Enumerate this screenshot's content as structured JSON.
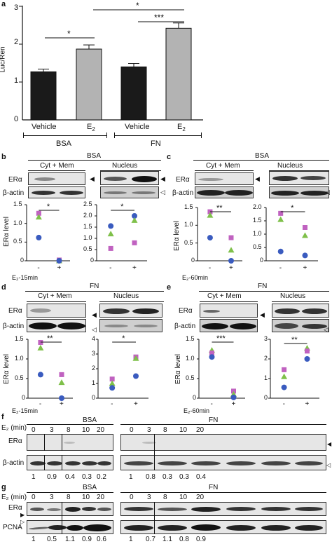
{
  "panel_a": {
    "label": "a",
    "ylabel": "Luc/Ren",
    "yticks": [
      "3",
      "2",
      "1",
      "0"
    ],
    "sig": [
      "*",
      "*",
      "***"
    ],
    "xlabels": [
      "Vehicle",
      "E",
      "Vehicle",
      "E"
    ],
    "e2_sub": "2",
    "groups": [
      "BSA",
      "FN"
    ]
  },
  "chart_data": {
    "type": "bar",
    "ylabel": "Luc/Ren",
    "ylim": [
      0,
      3
    ],
    "categories": [
      "Vehicle (BSA)",
      "E2 (BSA)",
      "Vehicle (FN)",
      "E2 (FN)"
    ],
    "values": [
      1.27,
      1.87,
      1.4,
      2.42
    ],
    "errors": [
      0.07,
      0.11,
      0.09,
      0.14
    ],
    "colors": [
      "#1a1a1a",
      "#b3b3b3",
      "#1a1a1a",
      "#b3b3b3"
    ]
  },
  "panel_b": {
    "label": "b",
    "title": "BSA",
    "left_header": "Cyt + Mem",
    "right_header": "Nucleus",
    "era": "ERα",
    "actin": "β-actin",
    "ylabel": "ERα level",
    "treat": "E₂-15min",
    "minus": "-",
    "plus": "+",
    "sig_left": "*",
    "sig_right": "*",
    "left_yticks": [
      "1.5",
      "1.0",
      "0.5",
      "0"
    ],
    "right_yticks": [
      "2.5",
      "2.0",
      "1.5",
      "1.0",
      "0.5",
      "0"
    ]
  },
  "panel_c": {
    "label": "c",
    "title": "BSA",
    "left_header": "Cyt + Mem",
    "right_header": "Nucleus",
    "era": "ERα",
    "actin": "β-actin",
    "ylabel": "ERα level",
    "treat": "E₂-60min",
    "minus": "-",
    "plus": "+",
    "sig_left": "**",
    "sig_right": "*",
    "left_yticks": [
      "1.5",
      "1.0",
      "0.5",
      "0"
    ],
    "right_yticks": [
      "2.0",
      "1.5",
      "1.0",
      "0.5",
      "0"
    ]
  },
  "panel_d": {
    "label": "d",
    "title": "FN",
    "left_header": "Cyt + Mem",
    "right_header": "Nucleus",
    "era": "ERα",
    "actin": "β-actin",
    "ylabel": "ERα level",
    "treat": "E₂-15min",
    "minus": "-",
    "plus": "+",
    "sig_left": "**",
    "sig_right": "*",
    "left_yticks": [
      "1.5",
      "1.0",
      "0.5",
      "0"
    ],
    "right_yticks": [
      "4",
      "3",
      "2",
      "1",
      "0"
    ]
  },
  "panel_e": {
    "label": "e",
    "title": "FN",
    "left_header": "Cyt + Mem",
    "right_header": "Nucleus",
    "era": "ERα",
    "actin": "β-actin",
    "ylabel": "ERα level",
    "treat": "E₂-60min",
    "minus": "-",
    "plus": "+",
    "sig_left": "***",
    "sig_right": "**",
    "left_yticks": [
      "1.5",
      "1.0",
      "0.5",
      "0"
    ],
    "right_yticks": [
      "3",
      "2",
      "1",
      "0"
    ]
  },
  "panel_f": {
    "label": "f",
    "e2min": "E₂ (min)",
    "bsa": "BSA",
    "fn": "FN",
    "times": [
      "0",
      "3",
      "8",
      "10",
      "20"
    ],
    "era": "ERα",
    "actin": "β-actin",
    "bsa_values": [
      "1",
      "0.9",
      "0.4",
      "0.3",
      "0.2"
    ],
    "fn_values": [
      "1",
      "0.8",
      "0.3",
      "0.3",
      "0.4"
    ]
  },
  "panel_g": {
    "label": "g",
    "e2min": "E₂ (min)",
    "bsa": "BSA",
    "fn": "FN",
    "times": [
      "0",
      "3",
      "8",
      "10",
      "20"
    ],
    "era": "ERα",
    "pcna": "PCNA",
    "bsa_values": [
      "1",
      "0.5",
      "1.1",
      "0.9",
      "0.6"
    ],
    "fn_values": [
      "1",
      "0.7",
      "1.1",
      "0.8",
      "0.9"
    ]
  }
}
